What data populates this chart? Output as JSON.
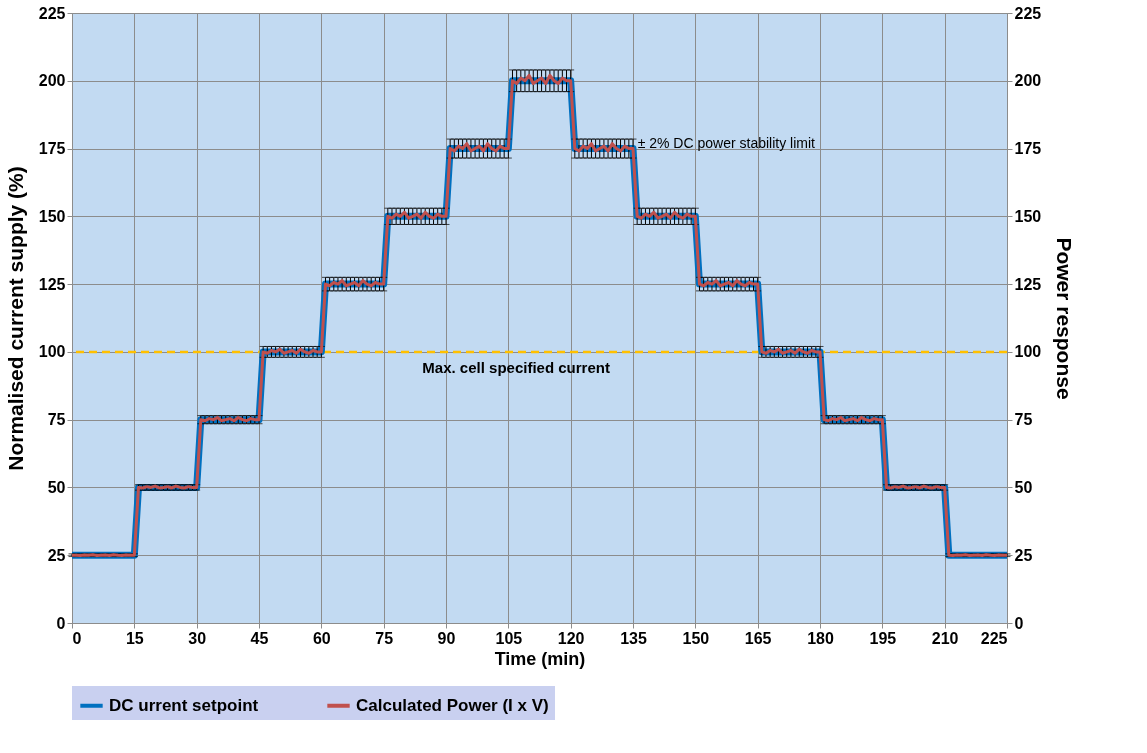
{
  "chart_data": {
    "type": "line",
    "xlabel": "Time (min)",
    "ylabel": "Normalised current supply (%)",
    "y2label": "Power response",
    "x": [
      0,
      1,
      2,
      3,
      4,
      5,
      6,
      7,
      8,
      9,
      10,
      11,
      12,
      13,
      14,
      15,
      16,
      17,
      18,
      19,
      20,
      21,
      22,
      23,
      24,
      25,
      26,
      27,
      28,
      29,
      30,
      31,
      32,
      33,
      34,
      35,
      36,
      37,
      38,
      39,
      40,
      41,
      42,
      43,
      44,
      45,
      46,
      47,
      48,
      49,
      50,
      51,
      52,
      53,
      54,
      55,
      56,
      57,
      58,
      59,
      60,
      61,
      62,
      63,
      64,
      65,
      66,
      67,
      68,
      69,
      70,
      71,
      72,
      73,
      74,
      75,
      76,
      77,
      78,
      79,
      80,
      81,
      82,
      83,
      84,
      85,
      86,
      87,
      88,
      89,
      90,
      91,
      92,
      93,
      94,
      95,
      96,
      97,
      98,
      99,
      100,
      101,
      102,
      103,
      104,
      105,
      106,
      107,
      108,
      109,
      110,
      111,
      112,
      113,
      114,
      115,
      116,
      117,
      118,
      119,
      120,
      121,
      122,
      123,
      124,
      125,
      126,
      127,
      128,
      129,
      130,
      131,
      132,
      133,
      134,
      135,
      136,
      137,
      138,
      139,
      140,
      141,
      142,
      143,
      144,
      145,
      146,
      147,
      148,
      149,
      150,
      151,
      152,
      153,
      154,
      155,
      156,
      157,
      158,
      159,
      160,
      161,
      162,
      163,
      164,
      165,
      166,
      167,
      168,
      169,
      170,
      171,
      172,
      173,
      174,
      175,
      176,
      177,
      178,
      179,
      180,
      181,
      182,
      183,
      184,
      185,
      186,
      187,
      188,
      189,
      190,
      191,
      192,
      193,
      194,
      195,
      196,
      197,
      198,
      199,
      200,
      201,
      202,
      203,
      204,
      205,
      206,
      207,
      208,
      209,
      210,
      211,
      212,
      213,
      214,
      215,
      216,
      217,
      218,
      219,
      220,
      221,
      222,
      223,
      224,
      225
    ],
    "series": [
      {
        "name": "DC urrent setpoint",
        "color": "#0070c0",
        "values": [
          25,
          25,
          25,
          25,
          25,
          25,
          25,
          25,
          25,
          25,
          25,
          25,
          25,
          25,
          25,
          25,
          50,
          50,
          50,
          50,
          50,
          50,
          50,
          50,
          50,
          50,
          50,
          50,
          50,
          50,
          50,
          75,
          75,
          75,
          75,
          75,
          75,
          75,
          75,
          75,
          75,
          75,
          75,
          75,
          75,
          75,
          100,
          100,
          100,
          100,
          100,
          100,
          100,
          100,
          100,
          100,
          100,
          100,
          100,
          100,
          100,
          125,
          125,
          125,
          125,
          125,
          125,
          125,
          125,
          125,
          125,
          125,
          125,
          125,
          125,
          125,
          150,
          150,
          150,
          150,
          150,
          150,
          150,
          150,
          150,
          150,
          150,
          150,
          150,
          150,
          150,
          175,
          175,
          175,
          175,
          175,
          175,
          175,
          175,
          175,
          175,
          175,
          175,
          175,
          175,
          175,
          200,
          200,
          200,
          200,
          200,
          200,
          200,
          200,
          200,
          200,
          200,
          200,
          200,
          200,
          200,
          175,
          175,
          175,
          175,
          175,
          175,
          175,
          175,
          175,
          175,
          175,
          175,
          175,
          175,
          175,
          150,
          150,
          150,
          150,
          150,
          150,
          150,
          150,
          150,
          150,
          150,
          150,
          150,
          150,
          150,
          125,
          125,
          125,
          125,
          125,
          125,
          125,
          125,
          125,
          125,
          125,
          125,
          125,
          125,
          125,
          100,
          100,
          100,
          100,
          100,
          100,
          100,
          100,
          100,
          100,
          100,
          100,
          100,
          100,
          100,
          75,
          75,
          75,
          75,
          75,
          75,
          75,
          75,
          75,
          75,
          75,
          75,
          75,
          75,
          75,
          50,
          50,
          50,
          50,
          50,
          50,
          50,
          50,
          50,
          50,
          50,
          50,
          50,
          50,
          50,
          25,
          25,
          25,
          25,
          25,
          25,
          25,
          25,
          25,
          25,
          25,
          25,
          25,
          25,
          25
        ],
        "errors": [
          0.5,
          0.5,
          0.5,
          0.5,
          0.5,
          0.5,
          0.5,
          0.5,
          0.5,
          0.5,
          0.5,
          0.5,
          0.5,
          0.5,
          0.5,
          0.5,
          1,
          1,
          1,
          1,
          1,
          1,
          1,
          1,
          1,
          1,
          1,
          1,
          1,
          1,
          1,
          1.5,
          1.5,
          1.5,
          1.5,
          1.5,
          1.5,
          1.5,
          1.5,
          1.5,
          1.5,
          1.5,
          1.5,
          1.5,
          1.5,
          1.5,
          2,
          2,
          2,
          2,
          2,
          2,
          2,
          2,
          2,
          2,
          2,
          2,
          2,
          2,
          2,
          2.5,
          2.5,
          2.5,
          2.5,
          2.5,
          2.5,
          2.5,
          2.5,
          2.5,
          2.5,
          2.5,
          2.5,
          2.5,
          2.5,
          2.5,
          3,
          3,
          3,
          3,
          3,
          3,
          3,
          3,
          3,
          3,
          3,
          3,
          3,
          3,
          3,
          3.5,
          3.5,
          3.5,
          3.5,
          3.5,
          3.5,
          3.5,
          3.5,
          3.5,
          3.5,
          3.5,
          3.5,
          3.5,
          3.5,
          3.5,
          4,
          4,
          4,
          4,
          4,
          4,
          4,
          4,
          4,
          4,
          4,
          4,
          4,
          4,
          4,
          3.5,
          3.5,
          3.5,
          3.5,
          3.5,
          3.5,
          3.5,
          3.5,
          3.5,
          3.5,
          3.5,
          3.5,
          3.5,
          3.5,
          3.5,
          3,
          3,
          3,
          3,
          3,
          3,
          3,
          3,
          3,
          3,
          3,
          3,
          3,
          3,
          3,
          2.5,
          2.5,
          2.5,
          2.5,
          2.5,
          2.5,
          2.5,
          2.5,
          2.5,
          2.5,
          2.5,
          2.5,
          2.5,
          2.5,
          2.5,
          2,
          2,
          2,
          2,
          2,
          2,
          2,
          2,
          2,
          2,
          2,
          2,
          2,
          2,
          2,
          1.5,
          1.5,
          1.5,
          1.5,
          1.5,
          1.5,
          1.5,
          1.5,
          1.5,
          1.5,
          1.5,
          1.5,
          1.5,
          1.5,
          1.5,
          1,
          1,
          1,
          1,
          1,
          1,
          1,
          1,
          1,
          1,
          1,
          1,
          1,
          1,
          1,
          0.5,
          0.5,
          0.5,
          0.5,
          0.5,
          0.5,
          0.5,
          0.5,
          0.5,
          0.5,
          0.5,
          0.5,
          0.5,
          0.5,
          0.5
        ]
      },
      {
        "name": "Calculated Power (I x V)",
        "color": "#c0504d",
        "axis": "y2",
        "values": [
          25,
          25,
          24.9,
          25.1,
          25,
          25.2,
          24.9,
          25,
          25.1,
          24.9,
          25.2,
          25,
          24.9,
          25.1,
          25,
          25,
          50,
          49.8,
          50.3,
          50,
          50.5,
          49.8,
          50,
          50.3,
          49.8,
          50.5,
          50,
          49.8,
          50.3,
          50,
          50,
          75,
          74.6,
          75.4,
          75,
          75.8,
          74.6,
          75,
          75.4,
          74.6,
          75.8,
          75,
          74.6,
          75.4,
          75,
          75,
          100,
          99.5,
          100.5,
          100,
          101,
          99.5,
          100,
          100.5,
          99.5,
          101,
          100,
          99.5,
          100.5,
          100,
          100,
          125,
          124.4,
          125.6,
          125,
          126.3,
          124.4,
          125,
          125.6,
          124.4,
          126.3,
          125,
          124.4,
          125.6,
          125,
          125,
          150,
          149.3,
          150.8,
          150,
          151.5,
          149.3,
          150,
          150.8,
          149.3,
          151.5,
          150,
          149.3,
          150.8,
          150,
          150,
          175,
          174.1,
          175.9,
          175,
          176.8,
          174.1,
          175,
          175.9,
          174.1,
          176.8,
          175,
          174.1,
          175.9,
          175,
          175,
          200,
          199,
          201,
          200,
          202,
          199,
          200,
          201,
          199,
          202,
          200,
          199,
          201,
          200,
          200,
          175,
          174.1,
          175.9,
          175,
          176.8,
          174.1,
          175,
          175.9,
          174.1,
          176.8,
          175,
          174.1,
          175.9,
          175,
          175,
          150,
          149.3,
          150.8,
          150,
          151.5,
          149.3,
          150,
          150.8,
          149.3,
          151.5,
          150,
          149.3,
          150.8,
          150,
          150,
          125,
          124.4,
          125.6,
          125,
          126.3,
          124.4,
          125,
          125.6,
          124.4,
          126.3,
          125,
          124.4,
          125.6,
          125,
          125,
          100,
          99.5,
          100.5,
          100,
          101,
          99.5,
          100,
          100.5,
          99.5,
          101,
          100,
          99.5,
          100.5,
          100,
          100,
          75,
          74.6,
          75.4,
          75,
          75.8,
          74.6,
          75,
          75.4,
          74.6,
          75.8,
          75,
          74.6,
          75.4,
          75,
          75,
          50,
          49.8,
          50.3,
          50,
          50.5,
          49.8,
          50,
          50.3,
          49.8,
          50.5,
          50,
          49.8,
          50.3,
          50,
          50,
          25,
          24.9,
          25.1,
          25,
          25.2,
          24.9,
          25,
          25.1,
          24.9,
          25.2,
          25,
          24.9,
          25.1,
          25,
          25
        ]
      }
    ],
    "xlim": [
      0,
      225
    ],
    "xticks": [
      0,
      15,
      30,
      45,
      60,
      75,
      90,
      105,
      120,
      135,
      150,
      165,
      180,
      195,
      210,
      225
    ],
    "ylim": [
      0,
      225
    ],
    "yticks": [
      0,
      25,
      50,
      75,
      100,
      125,
      150,
      175,
      200,
      225
    ],
    "y2lim": [
      0,
      225
    ],
    "y2ticks": [
      0,
      25,
      50,
      75,
      100,
      125,
      150,
      175,
      200,
      225
    ],
    "ref_lines": [
      {
        "axis": "y",
        "value": 100,
        "label": "Max. cell specified current",
        "color": "#ffc000",
        "line_style": "dashed"
      }
    ],
    "annotations": [
      "± 2% DC power stability limit"
    ],
    "grid": true,
    "legend": "bottom",
    "marker": "none",
    "line_style": "solid"
  }
}
